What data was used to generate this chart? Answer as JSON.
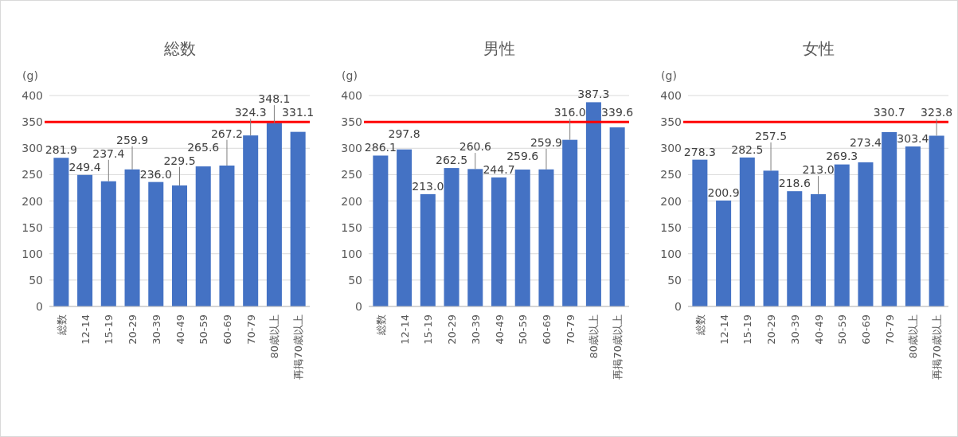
{
  "chart_data": [
    {
      "type": "bar",
      "title": "総数",
      "ylabel": "(g)",
      "categories": [
        "総数",
        "12-14",
        "15-19",
        "20-29",
        "30-39",
        "40-49",
        "50-59",
        "60-69",
        "70-79",
        "80歳以上",
        "再掲70歳以上"
      ],
      "values": [
        281.9,
        249.4,
        237.4,
        259.9,
        236.0,
        229.5,
        265.6,
        267.2,
        324.3,
        348.1,
        331.1
      ],
      "value_labels": [
        "281.9",
        "249.4",
        "237.4",
        "259.9",
        "236.0",
        "229.5",
        "265.6",
        "267.2",
        "324.3",
        "348.1",
        "331.1"
      ],
      "color": "#4472c4",
      "ylim": [
        0,
        400
      ],
      "yticks": [
        0,
        50,
        100,
        150,
        200,
        250,
        300,
        350,
        400
      ],
      "grid": "y",
      "ref_lines": [
        {
          "axis": "y",
          "value": 350,
          "color": "#ff0000"
        }
      ]
    },
    {
      "type": "bar",
      "title": "男性",
      "ylabel": "(g)",
      "categories": [
        "総数",
        "12-14",
        "15-19",
        "20-29",
        "30-39",
        "40-49",
        "50-59",
        "60-69",
        "70-79",
        "80歳以上",
        "再掲70歳以上"
      ],
      "values": [
        286.1,
        297.8,
        213.0,
        262.5,
        260.6,
        244.7,
        259.6,
        259.9,
        316.0,
        387.3,
        339.6
      ],
      "value_labels": [
        "286.1",
        "297.8",
        "213.0",
        "262.5",
        "260.6",
        "244.7",
        "259.6",
        "259.9",
        "316.0",
        "387.3",
        "339.6"
      ],
      "color": "#4472c4",
      "ylim": [
        0,
        400
      ],
      "yticks": [
        0,
        50,
        100,
        150,
        200,
        250,
        300,
        350,
        400
      ],
      "grid": "y",
      "ref_lines": [
        {
          "axis": "y",
          "value": 350,
          "color": "#ff0000"
        }
      ]
    },
    {
      "type": "bar",
      "title": "女性",
      "ylabel": "(g)",
      "categories": [
        "総数",
        "12-14",
        "15-19",
        "20-29",
        "30-39",
        "40-49",
        "50-59",
        "60-69",
        "70-79",
        "80歳以上",
        "再掲70歳以上"
      ],
      "values": [
        278.3,
        200.9,
        282.5,
        257.5,
        218.6,
        213.0,
        269.3,
        273.4,
        330.7,
        303.4,
        323.8
      ],
      "value_labels": [
        "278.3",
        "200.9",
        "282.5",
        "257.5",
        "218.6",
        "213.0",
        "269.3",
        "273.4",
        "330.7",
        "303.4",
        "323.8"
      ],
      "color": "#4472c4",
      "ylim": [
        0,
        400
      ],
      "yticks": [
        0,
        50,
        100,
        150,
        200,
        250,
        300,
        350,
        400
      ],
      "grid": "y",
      "ref_lines": [
        {
          "axis": "y",
          "value": 350,
          "color": "#ff0000"
        }
      ]
    }
  ]
}
